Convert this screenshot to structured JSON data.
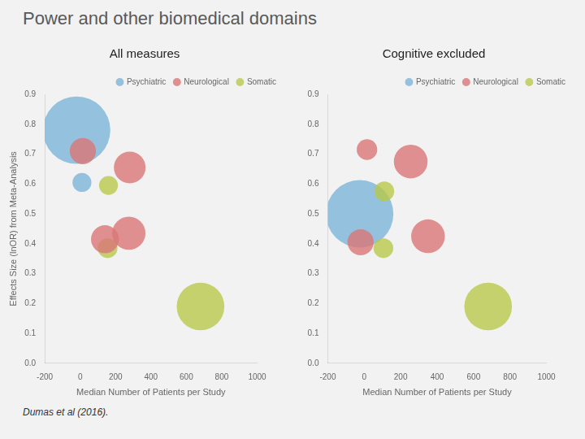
{
  "title": "Power and other biomedical domains",
  "footnote": "Dumas et al (2016).",
  "chart_data": [
    {
      "type": "bubble",
      "subtitle": "All measures",
      "xlabel": "Median Number of Patients per Study",
      "ylabel": "Effects Size (lnOR) from Meta-Analysis",
      "xlim": [
        -200,
        1000
      ],
      "ylim": [
        0,
        0.9
      ],
      "xticks": [
        -200,
        0,
        200,
        400,
        600,
        800,
        1000
      ],
      "yticks": [
        {
          "value": 0,
          "label": "0.0"
        },
        0.1,
        0.2,
        0.3,
        0.4,
        0.5,
        0.6,
        0.7,
        0.8,
        0.9
      ],
      "grid": false,
      "legend": "upper right",
      "series": [
        {
          "name": "Psychiatric",
          "color": "#7ab4d8",
          "x": [
            -20,
            10
          ],
          "values": [
            0.78,
            0.605
          ],
          "sizes": [
            2800,
            220
          ]
        },
        {
          "name": "Neurological",
          "color": "#d97575",
          "x": [
            15,
            280,
            140,
            275
          ],
          "values": [
            0.71,
            0.655,
            0.415,
            0.435
          ],
          "sizes": [
            420,
            620,
            480,
            680
          ]
        },
        {
          "name": "Somatic",
          "color": "#b8c84a",
          "x": [
            160,
            155,
            680
          ],
          "values": [
            0.595,
            0.385,
            0.19
          ],
          "sizes": [
            220,
            240,
            1400
          ]
        }
      ]
    },
    {
      "type": "bubble",
      "subtitle": "Cognitive excluded",
      "xlabel": "Median Number of Patients per Study",
      "xlim": [
        -200,
        1000
      ],
      "ylim": [
        0,
        0.9
      ],
      "xticks": [
        -200,
        0,
        200,
        400,
        600,
        800,
        1000
      ],
      "yticks": [
        {
          "value": 0,
          "label": "0.0"
        },
        0.1,
        0.2,
        0.3,
        0.4,
        0.5,
        0.6,
        0.7,
        0.8,
        0.9
      ],
      "grid": false,
      "legend": "upper right",
      "series": [
        {
          "name": "Psychiatric",
          "color": "#7ab4d8",
          "x": [
            -25
          ],
          "values": [
            0.5
          ],
          "sizes": [
            2800
          ]
        },
        {
          "name": "Neurological",
          "color": "#d97575",
          "x": [
            -20,
            15,
            255,
            350
          ],
          "values": [
            0.405,
            0.715,
            0.675,
            0.425
          ],
          "sizes": [
            420,
            260,
            700,
            700
          ]
        },
        {
          "name": "Somatic",
          "color": "#b8c84a",
          "x": [
            110,
            105,
            680
          ],
          "values": [
            0.575,
            0.385,
            0.19
          ],
          "sizes": [
            240,
            240,
            1400
          ]
        }
      ]
    }
  ]
}
